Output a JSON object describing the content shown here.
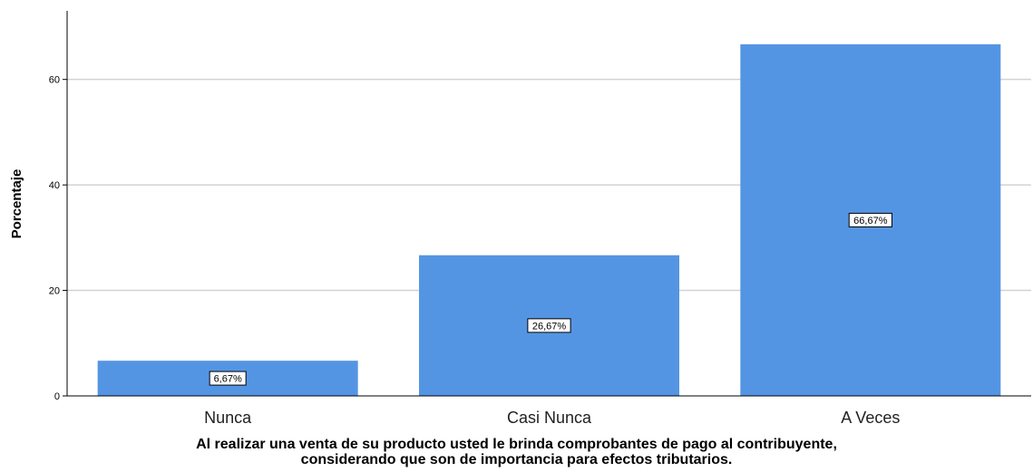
{
  "chart_data": {
    "type": "bar",
    "categories": [
      "Nunca",
      "Casi Nunca",
      "A Veces"
    ],
    "values": [
      6.67,
      26.67,
      66.67
    ],
    "data_labels": [
      "6,67%",
      "26,67%",
      "66,67%"
    ],
    "ylabel": "Porcentaje",
    "xlabel_lines": [
      "Al realizar una venta de su producto usted le brinda comprobantes de pago al contribuyente,",
      "considerando que son de importancia para efectos tributarios."
    ],
    "ylim": [
      0,
      73
    ],
    "yticks": [
      0,
      20,
      40,
      60
    ],
    "grid": true,
    "legend": "none",
    "bar_color": "#5495e3",
    "gridline_color": "#d3d3d3"
  }
}
